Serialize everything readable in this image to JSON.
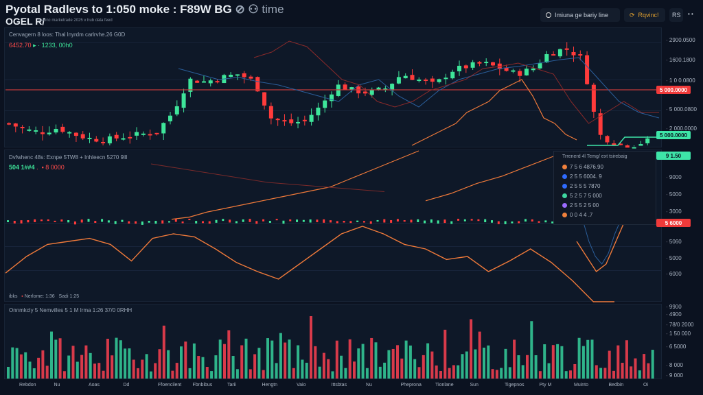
{
  "header": {
    "title": "Pyotal Radlevs to 1:050 moke : F89W BG",
    "title_suffix": "time",
    "subtitle": "OGEL R/",
    "subnote": "sca inc marketrade 2025 v hub data feed"
  },
  "toolbar": {
    "search_label": "Imiuna ge bariy line",
    "alert_label": "Rqvinc!",
    "settings_label": "RS",
    "more_label": "• •"
  },
  "price_panel": {
    "caption": "Cenvagern 8 loos: Thal lnyrdm carlrvhe.26 G0D",
    "price_red": "6452.70",
    "price_green": "1233, 00h0",
    "axis": [
      "2900.0500",
      "1600.1800",
      "1 0 0.0800",
      "5 000.0800",
      "2 000.0000"
    ],
    "tag_red": "5 000.0000",
    "tag_green": "5 000.0000"
  },
  "osc_panel": {
    "caption": "Dvfwhenc 48s: Exnpe 5TW8 + Inhleecn 5270 9lll",
    "value_green": "504 1##4",
    "value_red": "8 0000",
    "axis": [
      "9000",
      "5000",
      "3000",
      "5060",
      "5000",
      "6000"
    ],
    "tag_top": "9 1.50",
    "tag_red": "5 6000",
    "footer": [
      "ibks",
      "Nerlome: 1:36",
      "Sadi 1:25"
    ],
    "legend": {
      "title": "Trrenerd 4l Temg/ ext tsirebaig",
      "items": [
        {
          "label": "7 5 6 4876.90",
          "color": "#f0803c"
        },
        {
          "label": "2 5 5 6004. 9",
          "color": "#2f6bff"
        },
        {
          "label": "2 5 5 5 7870",
          "color": "#2f6bff"
        },
        {
          "label": "5 2 5 7 5 000",
          "color": "#3ed6a0"
        },
        {
          "label": "2 5 5 2 5 00",
          "color": "#9b6bff"
        },
        {
          "label": "0 0 4 4 .7",
          "color": "#f0803c"
        }
      ]
    }
  },
  "vol_panel": {
    "caption": "Onnmkcly 5 Nemvilles 5 1 M Irma 1:26 37/0 0RHH",
    "axis": [
      "9900",
      "4900",
      "78/0 2000",
      "1 50 000",
      "6 5000",
      "8 000",
      "9 000"
    ]
  },
  "x_labels": [
    "Rebdon",
    "Nu",
    "Aoas",
    "Dd",
    "Ffoencilent",
    "Fbnbibus",
    "Tarii",
    "Hengtn",
    "Vaio",
    "Ittsbtas",
    "Nu",
    "Pheprona",
    "Tionlane",
    "Sun",
    "Tigepnos",
    "Pty M",
    "Muinto",
    "Bedbin",
    "Oi"
  ],
  "colors": {
    "up": "#3ee59a",
    "down": "#ff3b3b",
    "orange": "#f07a3a",
    "blue": "#2b5f9c",
    "darkred": "#8a2a2a",
    "bg": "#0b1220"
  },
  "chart_data": {
    "type": "candlestick",
    "price_trend": [
      20,
      14,
      12,
      16,
      10,
      6,
      5,
      8,
      10,
      12,
      30,
      60,
      58,
      62,
      65,
      58,
      25,
      20,
      22,
      35,
      55,
      50,
      48,
      52,
      65,
      60,
      55,
      68,
      72,
      75,
      70,
      65,
      70,
      85,
      88,
      80,
      10,
      2,
      0,
      4
    ],
    "oscillator": [
      19,
      30,
      38,
      40,
      42,
      38,
      27,
      42,
      45,
      43,
      35,
      26,
      20,
      15,
      25,
      35,
      45,
      50,
      45,
      38,
      35,
      28,
      30,
      20,
      27,
      35,
      26,
      14,
      0,
      0
    ],
    "ma_orange": [
      5,
      8,
      15,
      20,
      25,
      30,
      35,
      40,
      45,
      50,
      60,
      70,
      80,
      90,
      100
    ],
    "volume_seed": 7
  }
}
